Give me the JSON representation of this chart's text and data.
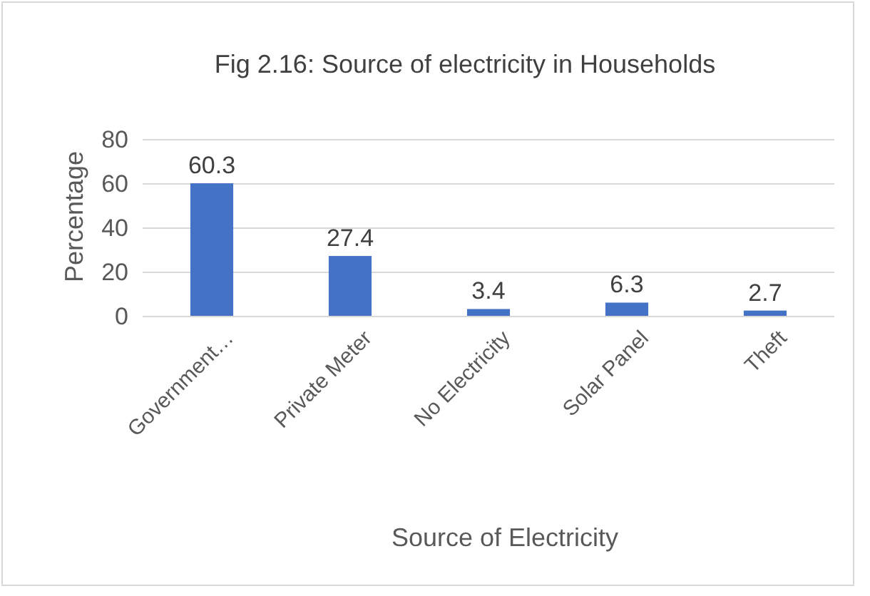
{
  "chart_data": {
    "type": "bar",
    "title": "Fig 2.16: Source of electricity in Households",
    "xlabel": "Source of Electricity",
    "ylabel": "Percentage",
    "categories": [
      "Government…",
      "Private Meter",
      "No Electricity",
      "Solar Panel",
      "Theft"
    ],
    "values": [
      60.3,
      27.4,
      3.4,
      6.3,
      2.7
    ],
    "color": "#4472c4",
    "ylim": [
      0,
      80
    ],
    "yticks": [
      0,
      20,
      40,
      60,
      80
    ],
    "grid": "y",
    "data_labels": true
  }
}
